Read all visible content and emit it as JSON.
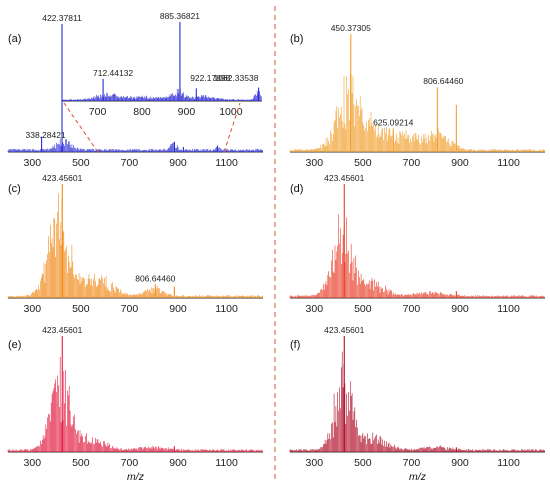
{
  "figure": {
    "divider_color": "#e0503c"
  },
  "chart_data": [
    {
      "id": "a",
      "type": "line",
      "panel_label": "(a)",
      "color": "#2b2bd6",
      "xlim": [
        200,
        1250
      ],
      "xticks": [
        "300",
        "500",
        "700",
        "900",
        "1100"
      ],
      "xlabel": "",
      "peaks": [
        {
          "x": 338.28421,
          "y": 0.12
        },
        {
          "x": 422.37811,
          "y": 1.0
        },
        {
          "x": 885.36821,
          "y": 0.08
        },
        {
          "x": 922.17898,
          "y": 0.04
        },
        {
          "x": 1062.33538,
          "y": 0.05
        }
      ],
      "annotations": [
        {
          "x": 422.37811,
          "label": "422.37811"
        },
        {
          "x": 338.28421,
          "label": "338.28421"
        }
      ],
      "inset": {
        "xlim": [
          620,
          1070
        ],
        "xticks": [
          "700",
          "800",
          "900",
          "1000"
        ],
        "zoom_range": [
          570,
          1090
        ],
        "peaks": [
          {
            "x": 712.44132,
            "y": 0.28
          },
          {
            "x": 885.36821,
            "y": 1.0
          },
          {
            "x": 922.17898,
            "y": 0.16
          },
          {
            "x": 1062.33538,
            "y": 0.17
          }
        ],
        "annotations": [
          {
            "x": 885.36821,
            "label": "885.36821"
          },
          {
            "x": 712.44132,
            "label": "712.44132"
          },
          {
            "x": 922.17898,
            "label": "922.17898"
          },
          {
            "x": 1062.33538,
            "label": "1062.33538"
          }
        ]
      }
    },
    {
      "id": "b",
      "type": "line",
      "panel_label": "(b)",
      "color": "#f2a030",
      "xlim": [
        200,
        1250
      ],
      "xticks": [
        "300",
        "500",
        "700",
        "900",
        "1100"
      ],
      "xlabel": "",
      "peaks": [
        {
          "x": 450.37305,
          "y": 1.0
        },
        {
          "x": 625.09214,
          "y": 0.2
        },
        {
          "x": 806.6446,
          "y": 0.55
        },
        {
          "x": 885.0,
          "y": 0.4
        }
      ],
      "annotations": [
        {
          "x": 450.37305,
          "label": "450.37305"
        },
        {
          "x": 806.6446,
          "label": "806.64460"
        },
        {
          "x": 625.09214,
          "label": "625.09214"
        }
      ]
    },
    {
      "id": "c",
      "type": "line",
      "panel_label": "(c)",
      "color": "#f08a18",
      "xlim": [
        200,
        1250
      ],
      "xticks": [
        "300",
        "500",
        "700",
        "900",
        "1100"
      ],
      "xlabel": "",
      "peaks": [
        {
          "x": 423.45601,
          "y": 1.0
        },
        {
          "x": 806.6446,
          "y": 0.12
        },
        {
          "x": 885.0,
          "y": 0.1
        }
      ],
      "annotations": [
        {
          "x": 423.45601,
          "label": "423.45601"
        },
        {
          "x": 806.6446,
          "label": "806.64460"
        }
      ]
    },
    {
      "id": "d",
      "type": "line",
      "panel_label": "(d)",
      "color": "#e8402a",
      "xlim": [
        200,
        1250
      ],
      "xticks": [
        "300",
        "500",
        "700",
        "900",
        "1100"
      ],
      "xlabel": "",
      "peaks": [
        {
          "x": 423.45601,
          "y": 1.0
        },
        {
          "x": 885.0,
          "y": 0.06
        }
      ],
      "annotations": [
        {
          "x": 423.45601,
          "label": "423.45601"
        }
      ]
    },
    {
      "id": "e",
      "type": "line",
      "panel_label": "(e)",
      "color": "#e21c40",
      "xlim": [
        200,
        1250
      ],
      "xticks": [
        "300",
        "500",
        "700",
        "900",
        "1100"
      ],
      "xlabel": "m/z",
      "peaks": [
        {
          "x": 423.45601,
          "y": 1.0
        },
        {
          "x": 885.0,
          "y": 0.05
        }
      ],
      "annotations": [
        {
          "x": 423.45601,
          "label": "423.45601"
        }
      ]
    },
    {
      "id": "f",
      "type": "line",
      "panel_label": "(f)",
      "color": "#b0102a",
      "xlim": [
        200,
        1250
      ],
      "xticks": [
        "300",
        "500",
        "700",
        "900",
        "1100"
      ],
      "xlabel": "m/z",
      "peaks": [
        {
          "x": 423.45601,
          "y": 1.0
        },
        {
          "x": 885.0,
          "y": 0.04
        }
      ],
      "annotations": [
        {
          "x": 423.45601,
          "label": "423.45601"
        }
      ]
    }
  ]
}
